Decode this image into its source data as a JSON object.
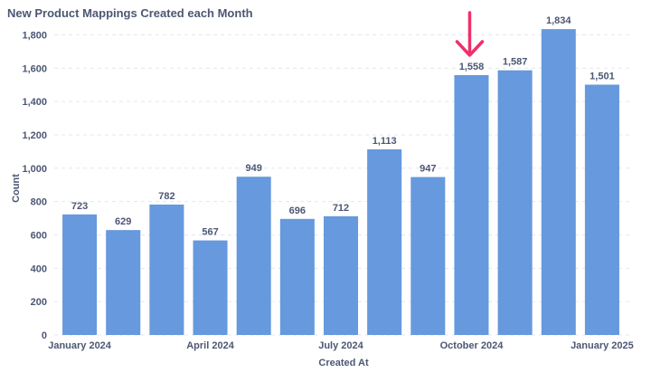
{
  "chart_data": {
    "type": "bar",
    "title": "New Product Mappings Created each Month",
    "xlabel": "Created At",
    "ylabel": "Count",
    "ylim": [
      0,
      1900
    ],
    "yticks": [
      0,
      200,
      400,
      600,
      800,
      1000,
      1200,
      1400,
      1600,
      1800
    ],
    "ytick_labels": [
      "0",
      "200",
      "400",
      "600",
      "800",
      "1,000",
      "1,200",
      "1,400",
      "1,600",
      "1,800"
    ],
    "categories": [
      "2024-01",
      "2024-02",
      "2024-03",
      "2024-04",
      "2024-05",
      "2024-06",
      "2024-07",
      "2024-08",
      "2024-09",
      "2024-10",
      "2024-11",
      "2024-12",
      "2025-01"
    ],
    "values": [
      723,
      629,
      782,
      567,
      949,
      696,
      712,
      1113,
      947,
      1558,
      1587,
      1834,
      1501
    ],
    "value_labels": [
      "723",
      "629",
      "782",
      "567",
      "949",
      "696",
      "712",
      "1,113",
      "947",
      "1,558",
      "1,587",
      "1,834",
      "1,501"
    ],
    "xtick_labels": [
      {
        "label": "January 2024",
        "category": "2024-01"
      },
      {
        "label": "April 2024",
        "category": "2024-04"
      },
      {
        "label": "July 2024",
        "category": "2024-07"
      },
      {
        "label": "October 2024",
        "category": "2024-10"
      },
      {
        "label": "January 2025",
        "category": "2025-01"
      }
    ],
    "grid": true,
    "bar_color": "#6699dd",
    "annotation": {
      "type": "arrow",
      "category": "2024-10",
      "color": "#f0306a"
    }
  }
}
